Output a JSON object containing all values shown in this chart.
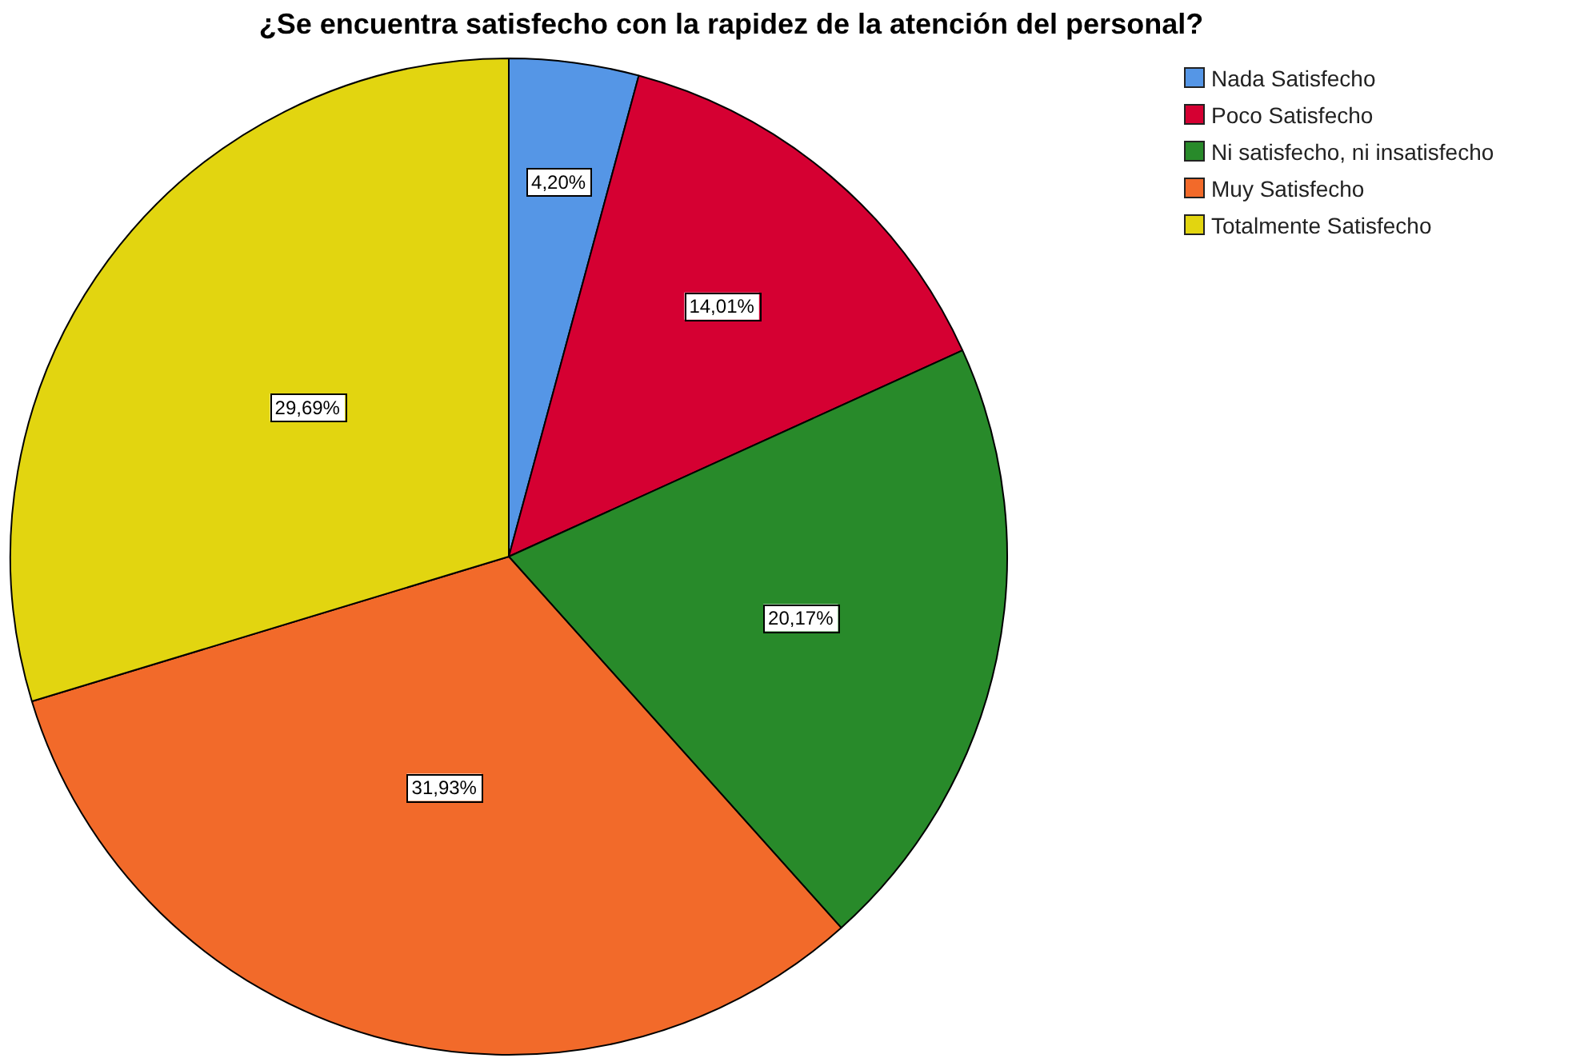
{
  "chart_data": {
    "type": "pie",
    "title": "¿Se encuentra satisfecho con la rapidez de la atención del personal?",
    "categories": [
      "Nada Satisfecho",
      "Poco Satisfecho",
      "Ni satisfecho, ni insatisfecho",
      "Muy Satisfecho",
      "Totalmente Satisfecho"
    ],
    "values": [
      4.2,
      14.01,
      20.17,
      31.93,
      29.69
    ],
    "colors": [
      "#5596e6",
      "#d50032",
      "#288a2a",
      "#f26a2a",
      "#e2d510"
    ],
    "value_labels": [
      "4,20%",
      "14,01%",
      "20,17%",
      "31,93%",
      "29,69%"
    ],
    "legend": "top right"
  }
}
